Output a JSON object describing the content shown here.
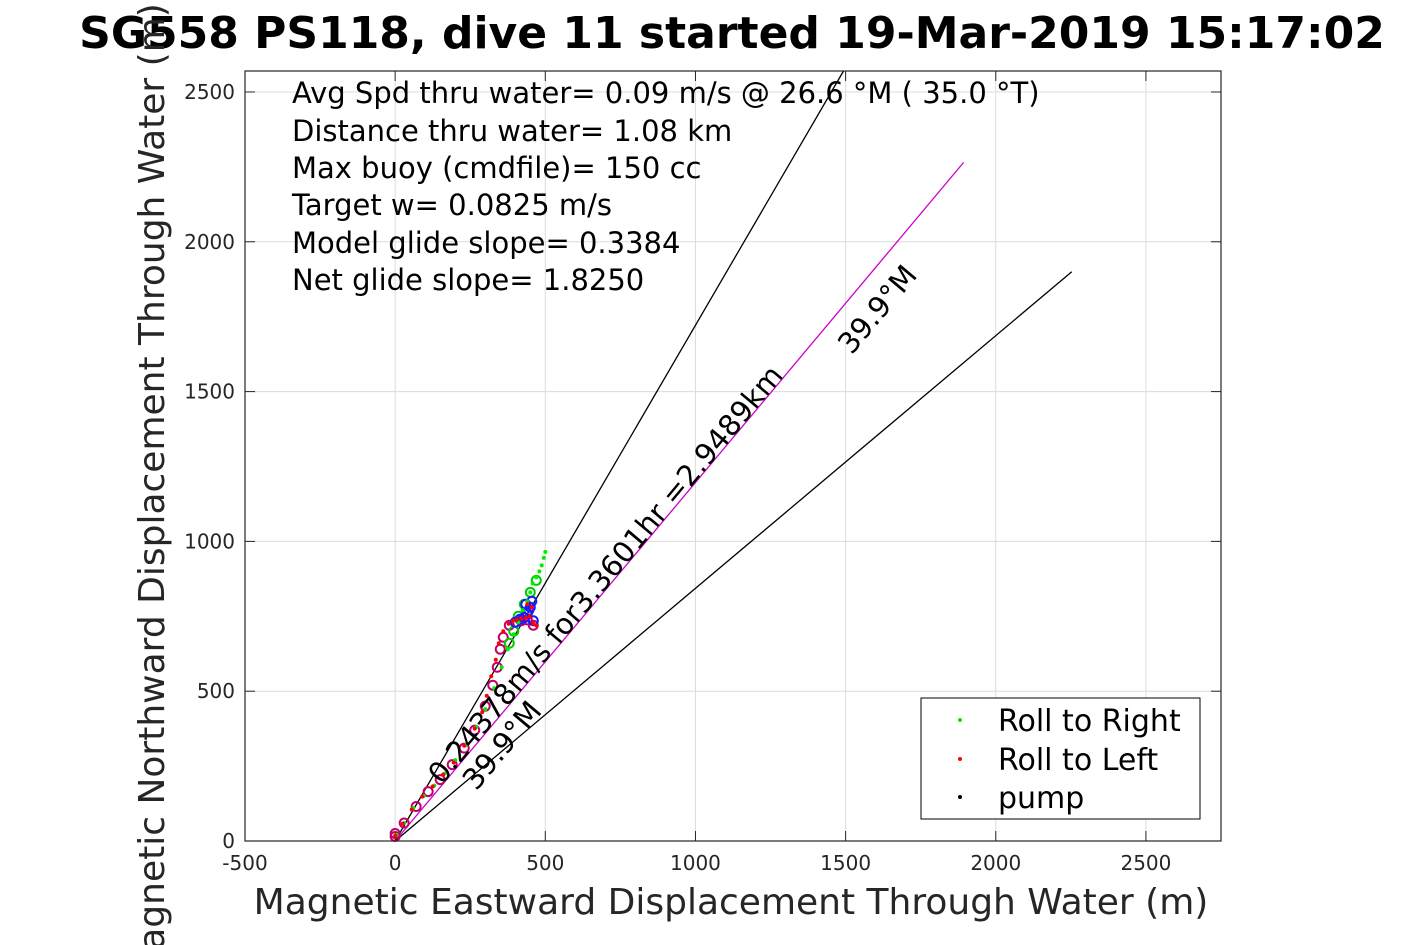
{
  "chart_data": {
    "type": "scatter",
    "title": "SG558 PS118, dive 11 started 19-Mar-2019 15:17:02",
    "xlabel": "Magnetic Eastward Displacement Through Water (m)",
    "ylabel": "Magnetic Northward Displacement Through Water (m)",
    "xlim": [
      -500,
      2750
    ],
    "ylim": [
      0,
      2570
    ],
    "x_ticks": [
      -500,
      0,
      500,
      1000,
      1500,
      2000,
      2500
    ],
    "y_ticks": [
      0,
      500,
      1000,
      1500,
      2000,
      2500
    ],
    "x_tick_labels": [
      "-500",
      "0",
      "500",
      "1000",
      "1500",
      "2000",
      "2500"
    ],
    "y_tick_labels": [
      "0",
      "500",
      "1000",
      "1500",
      "2000",
      "2500"
    ],
    "grid": true,
    "info_lines": [
      "Avg Spd thru water=  0.09 m/s @  26.6 °M ( 35.0 °T)",
      "Distance thru water=  1.08 km",
      "Max buoy (cmdfile)= 150 cc",
      "Target w= 0.0825 m/s",
      "Model glide slope= 0.3384",
      "Net glide slope= 1.8250"
    ],
    "reference_lines": [
      {
        "x": [
          0,
          1493
        ],
        "y": [
          0,
          2570
        ],
        "color": "#000000"
      },
      {
        "x": [
          0,
          1893
        ],
        "y": [
          0,
          2265
        ],
        "color": "#cc00cc"
      },
      {
        "x": [
          0,
          2253
        ],
        "y": [
          0,
          1900
        ],
        "color": "#000000"
      }
    ],
    "annotations": [
      {
        "text": "0.24378m/s for3.3601hr =2.9489km",
        "x": 155,
        "y": 185,
        "angle_deg": 50.1
      },
      {
        "text": "39.9°M",
        "x": 270,
        "y": 165,
        "angle_deg": 50.1
      },
      {
        "text": "39.9°M",
        "x": 1520,
        "y": 1620,
        "angle_deg": 50.1
      }
    ],
    "series": [
      {
        "name": "Roll to Right",
        "color": "#00ee00",
        "marker": "dot",
        "x": [
          5,
          30,
          60,
          95,
          130,
          165,
          200,
          235,
          270,
          300,
          330,
          355,
          375,
          395,
          410,
          425,
          440,
          450,
          458,
          470,
          480,
          488,
          495,
          500
        ],
        "y": [
          20,
          60,
          110,
          150,
          185,
          225,
          270,
          320,
          380,
          440,
          510,
          580,
          640,
          690,
          730,
          770,
          800,
          830,
          860,
          880,
          900,
          920,
          945,
          965
        ]
      },
      {
        "name": "Roll to Left",
        "color": "#ff0000",
        "marker": "dot",
        "x": [
          0,
          25,
          55,
          90,
          125,
          160,
          195,
          230,
          265,
          290,
          305,
          320,
          335,
          345,
          360,
          378,
          392,
          405,
          420,
          435,
          448,
          460,
          455,
          440,
          470
        ],
        "y": [
          18,
          58,
          105,
          148,
          182,
          222,
          262,
          318,
          375,
          430,
          485,
          550,
          605,
          660,
          700,
          725,
          735,
          738,
          742,
          745,
          750,
          725,
          780,
          790,
          720
        ]
      },
      {
        "name": "pump",
        "color": "#000000",
        "marker": "dot",
        "x": [],
        "y": []
      }
    ],
    "track_markers": {
      "circles_magenta": {
        "color": "#c0006a",
        "x": [
          0,
          30,
          70,
          110,
          150,
          190,
          230,
          265,
          300,
          325,
          340,
          350,
          360,
          380,
          400,
          420,
          440,
          460,
          0
        ],
        "y": [
          15,
          60,
          115,
          165,
          205,
          255,
          310,
          370,
          450,
          520,
          580,
          640,
          680,
          720,
          730,
          735,
          738,
          720,
          25
        ]
      },
      "circles_green": {
        "color": "#00cc00",
        "x": [
          380,
          395,
          410,
          430,
          450,
          470
        ],
        "y": [
          660,
          700,
          750,
          790,
          830,
          870
        ]
      },
      "circles_blue": {
        "color": "#1a1aff",
        "x": [
          400,
          415,
          430,
          440,
          450,
          455,
          445,
          435,
          460
        ],
        "y": [
          730,
          740,
          745,
          760,
          780,
          800,
          770,
          790,
          735
        ]
      }
    },
    "legend": {
      "placement": "bottom-right",
      "entries": [
        "Roll to Right",
        "Roll to Left",
        "pump"
      ]
    }
  }
}
